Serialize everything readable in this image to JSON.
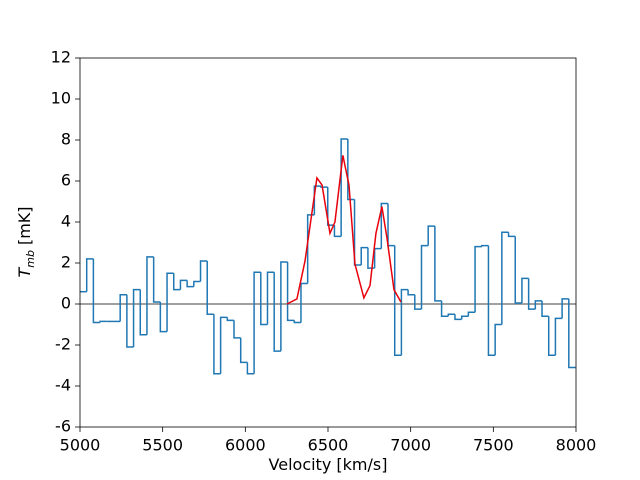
{
  "chart_data": {
    "type": "line",
    "xlabel": "Velocity [km/s]",
    "ylabel": {
      "symbol": "T",
      "subscript": "mb",
      "unit": "[mK]"
    },
    "xlim": [
      5000,
      8000
    ],
    "xticks": [
      5000,
      5500,
      6000,
      6500,
      7000,
      7500,
      8000
    ],
    "ylim": [
      -6,
      12
    ],
    "yticks": [
      -6,
      -4,
      -2,
      0,
      2,
      4,
      6,
      8,
      10,
      12
    ],
    "hline": {
      "value": 0,
      "color": "#808080"
    },
    "series": [
      {
        "drawstyle": "steps",
        "color": "#1f77b4",
        "bins": [
          5000,
          5040.5,
          5081,
          5121.5,
          5162,
          5202.5,
          5243,
          5283.5,
          5324,
          5364.5,
          5405,
          5445.5,
          5486,
          5526.5,
          5567,
          5607.5,
          5648,
          5688.5,
          5729,
          5769.5,
          5810,
          5850.5,
          5891,
          5931.5,
          5972,
          6012.5,
          6053,
          6093.5,
          6134,
          6174.5,
          6215,
          6255.5,
          6296,
          6336.5,
          6377,
          6417.5,
          6458,
          6498.5,
          6539,
          6579.5,
          6620,
          6660.5,
          6701,
          6741.5,
          6782,
          6822.5,
          6863,
          6903.5,
          6944,
          6984.5,
          7025,
          7065.5,
          7106,
          7146.5,
          7187,
          7227.5,
          7268,
          7308.5,
          7349,
          7389.5,
          7430,
          7470.5,
          7511,
          7551.5,
          7592,
          7632.5,
          7673,
          7713.5,
          7754,
          7794.5,
          7835,
          7875.5,
          7916,
          7956.5,
          7997
        ],
        "values": [
          0.6,
          2.2,
          -0.9,
          -0.85,
          -0.85,
          -0.85,
          0.45,
          -2.1,
          0.7,
          -1.5,
          2.3,
          0.1,
          -1.35,
          1.5,
          0.7,
          1.15,
          0.85,
          1.1,
          2.1,
          -0.5,
          -3.4,
          -0.65,
          -0.8,
          -1.65,
          -2.85,
          -3.4,
          1.55,
          -1.0,
          1.55,
          -2.3,
          2.05,
          -0.8,
          -0.9,
          1.0,
          4.35,
          5.75,
          5.7,
          3.85,
          3.3,
          8.05,
          5.1,
          1.9,
          2.75,
          1.75,
          2.7,
          4.9,
          2.85,
          -2.5,
          0.7,
          0.45,
          -0.25,
          2.85,
          3.8,
          0.15,
          -0.6,
          -0.5,
          -0.75,
          -0.6,
          -0.4,
          2.8,
          2.85,
          -2.5,
          -1.0,
          3.5,
          3.3,
          0.05,
          1.25,
          -0.25,
          0.15,
          -0.6,
          -2.5,
          -0.7,
          0.25,
          -3.1
        ]
      },
      {
        "drawstyle": "line",
        "color": "#e8000b",
        "x": [
          6252,
          6312,
          6361,
          6433,
          6464,
          6512,
          6542,
          6590,
          6627,
          6663,
          6717,
          6754,
          6790,
          6826,
          6857,
          6899,
          6941
        ],
        "values": [
          0,
          0.25,
          2.1,
          6.15,
          5.8,
          3.45,
          4.0,
          7.25,
          5.8,
          1.95,
          0.3,
          0.9,
          3.45,
          4.75,
          3.2,
          0.7,
          0.1
        ]
      }
    ]
  }
}
